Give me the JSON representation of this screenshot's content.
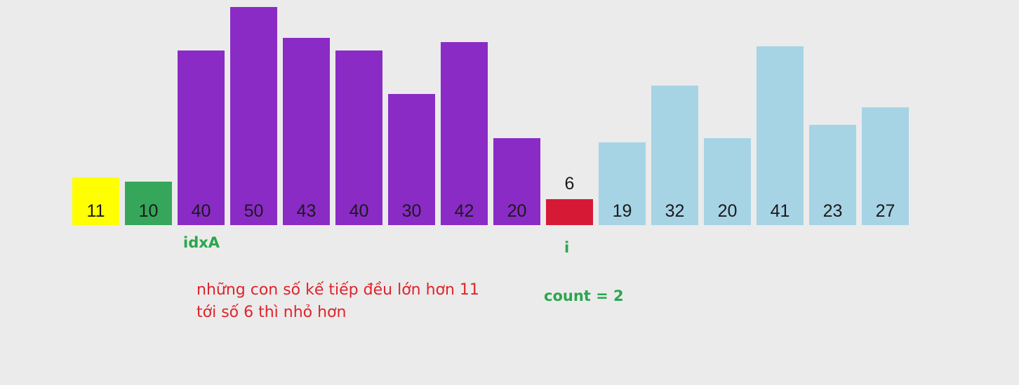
{
  "colors": {
    "background": "#ebebeb",
    "yellow": "#ffff00",
    "green": "#35a65a",
    "purple": "#8a2bc6",
    "red": "#d61a36",
    "lightblue": "#a7d4e5",
    "annotation_green": "#2aa64c",
    "note_red": "#e0232b"
  },
  "chart_data": {
    "type": "bar",
    "categories": [
      "11",
      "10",
      "40",
      "50",
      "43",
      "40",
      "30",
      "42",
      "20",
      "6",
      "19",
      "32",
      "20",
      "41",
      "23",
      "27"
    ],
    "values": [
      11,
      10,
      40,
      50,
      43,
      40,
      30,
      42,
      20,
      6,
      19,
      32,
      20,
      41,
      23,
      27
    ],
    "bar_colors": [
      "yellow",
      "green",
      "purple",
      "purple",
      "purple",
      "purple",
      "purple",
      "purple",
      "purple",
      "red",
      "lightblue",
      "lightblue",
      "lightblue",
      "lightblue",
      "lightblue",
      "lightblue"
    ],
    "title": "",
    "xlabel": "",
    "ylabel": ""
  },
  "annotations": {
    "idxA": "idxA",
    "i": "i",
    "count": "count = 2",
    "note_line1": "những con số kế tiếp đều lớn hơn 11",
    "note_line2": "tới số 6 thì nhỏ hơn"
  }
}
